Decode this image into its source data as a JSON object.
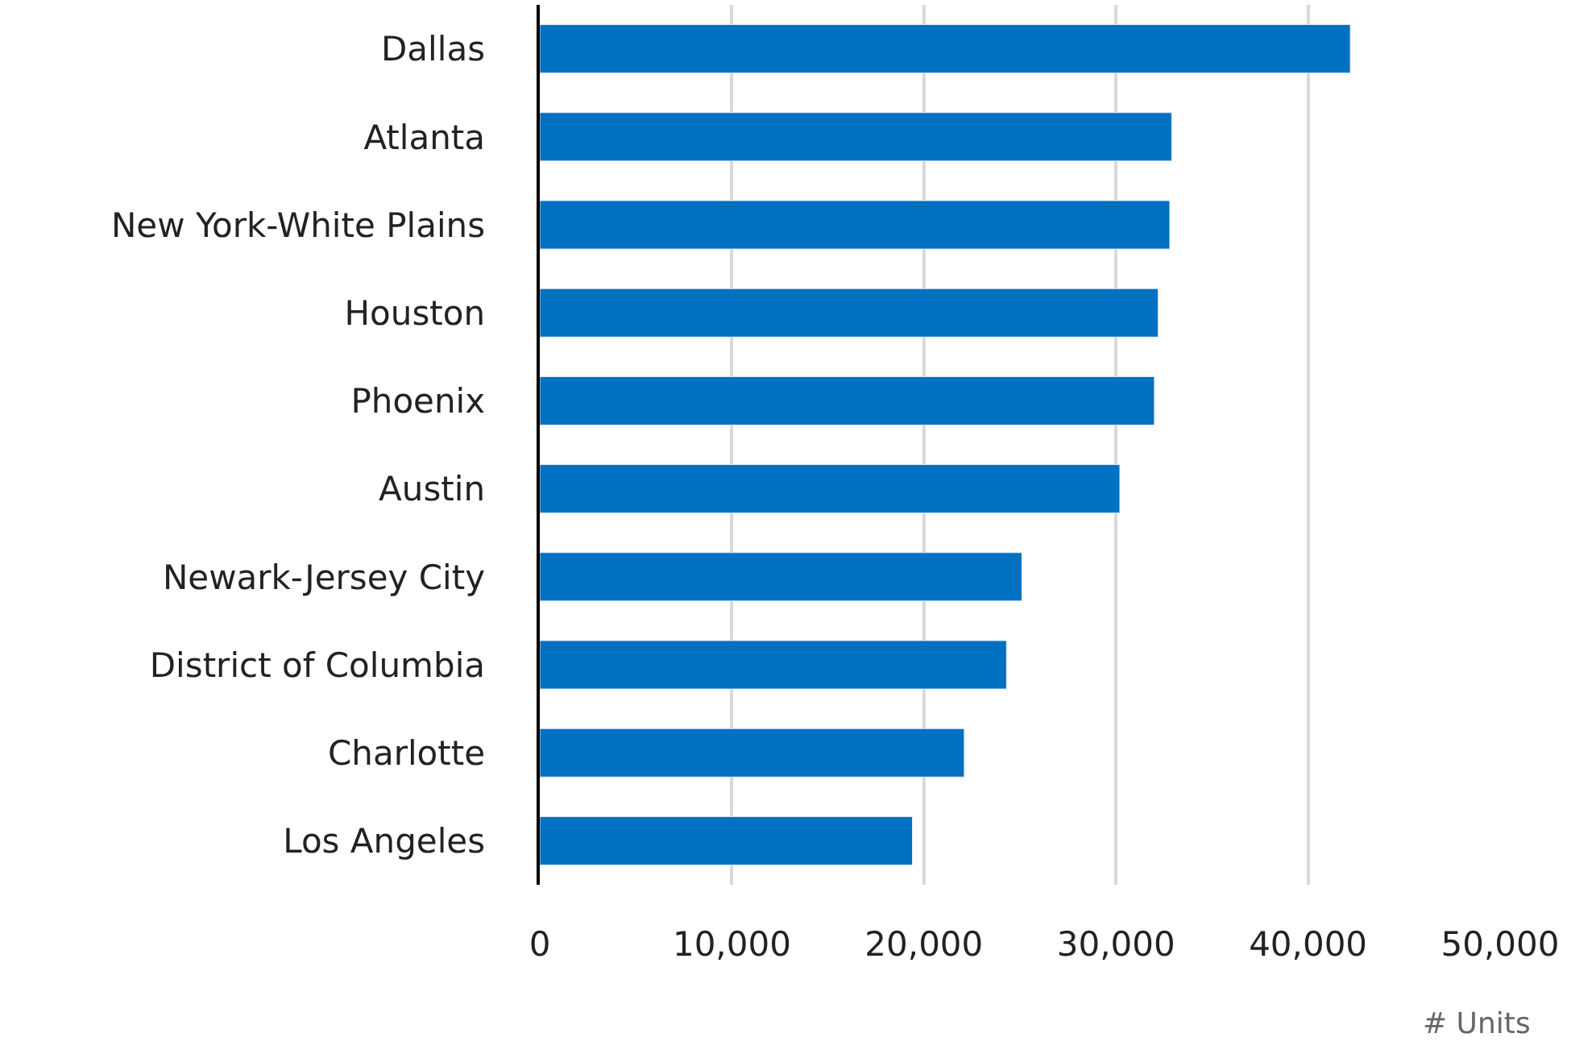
{
  "chart_data": {
    "type": "bar",
    "orientation": "horizontal",
    "xlabel": "# Units",
    "categories": [
      "Dallas",
      "Atlanta",
      "New York-White Plains",
      "Houston",
      "Phoenix",
      "Austin",
      "Newark-Jersey City",
      "District of Columbia",
      "Charlotte",
      "Los Angeles"
    ],
    "values": [
      42200,
      32900,
      32800,
      32200,
      32000,
      30200,
      25100,
      24300,
      22100,
      19400
    ],
    "color": "#0070c0",
    "xlim": [
      0,
      50000
    ],
    "xticks": [
      0,
      {
        "value": 10000,
        "label": "10,000"
      },
      {
        "value": 20000,
        "label": "20,000"
      },
      {
        "value": 30000,
        "label": "30,000"
      },
      {
        "value": 40000,
        "label": "40,000"
      },
      {
        "value": 50000,
        "label": "50,000"
      }
    ],
    "grid": "x",
    "legend": false
  }
}
